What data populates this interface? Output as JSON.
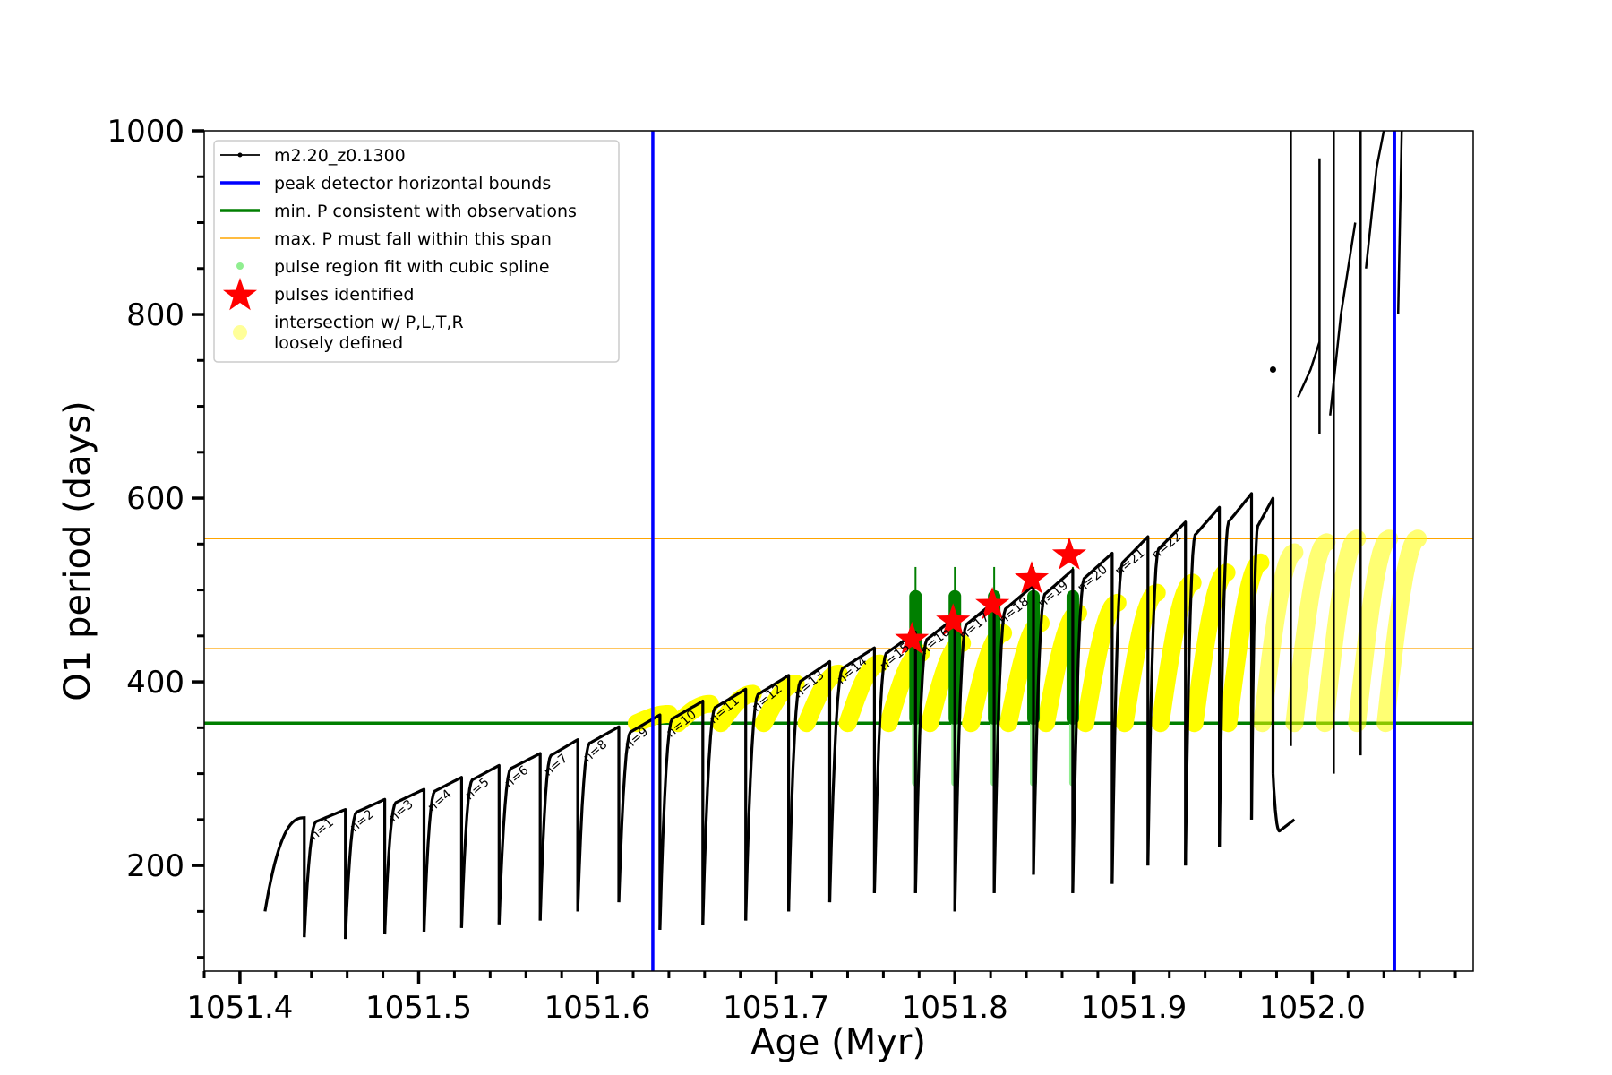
{
  "chart_data": {
    "type": "scatter",
    "xlabel": "Age (Myr)",
    "ylabel": "O1 period (days)",
    "xlim": [
      1051.38,
      2052.09
    ],
    "ylim": [
      85,
      1000
    ],
    "x_ticks": [
      1051.4,
      1051.5,
      1051.6,
      1051.7,
      1051.8,
      1051.9,
      1052.0
    ],
    "x_tick_labels": [
      "1051.4",
      "1051.5",
      "1051.6",
      "1051.7",
      "1051.8",
      "1051.9",
      "1052.0"
    ],
    "y_ticks": [
      200,
      400,
      600,
      800,
      1000
    ],
    "y_tick_labels": [
      "200",
      "400",
      "600",
      "800",
      "1000"
    ],
    "legend_position": "upper-left",
    "legend": [
      {
        "label": "m2.20_z0.1300",
        "style": "line-dot",
        "color": "#000000"
      },
      {
        "label": "peak detector horizontal bounds",
        "style": "line",
        "color": "#0000ff"
      },
      {
        "label": "min. P consistent with observations",
        "style": "line",
        "color": "#007f00"
      },
      {
        "label": "max. P must fall within this span",
        "style": "thin-line",
        "color": "#ffa500"
      },
      {
        "label": "pulse region fit with cubic spline",
        "style": "dot",
        "color": "#90ee90"
      },
      {
        "label": "pulses identified",
        "style": "star",
        "color": "#ff0000"
      },
      {
        "label": "intersection w/ P,L,T,R",
        "label2": "loosely defined",
        "style": "big-dot",
        "color": "#ffff99"
      }
    ],
    "vertical_bounds": [
      1051.631,
      1052.046
    ],
    "min_period": 355,
    "max_period_span": [
      436,
      556
    ],
    "colors": {
      "track": "#000000",
      "bounds": "#0000ff",
      "min_p": "#007f00",
      "max_p": "#ffa500",
      "spline": "#90ee90",
      "star": "#ff0000",
      "intersection": "#ffff00"
    },
    "pulses": [
      {
        "label": "n=1",
        "start": 1051.436,
        "start_p": 122,
        "peak": 262
      },
      {
        "label": "n=2",
        "start": 1051.459,
        "start_p": 120,
        "peak": 271
      },
      {
        "label": "n=3",
        "start": 1051.481,
        "start_p": 125,
        "peak": 282
      },
      {
        "label": "n=4",
        "start": 1051.503,
        "start_p": 128,
        "peak": 293
      },
      {
        "label": "n=5",
        "start": 1051.524,
        "start_p": 132,
        "peak": 306
      },
      {
        "label": "n=6",
        "start": 1051.545,
        "start_p": 136,
        "peak": 319
      },
      {
        "label": "n=7",
        "start": 1051.568,
        "start_p": 140,
        "peak": 332
      },
      {
        "label": "n=8",
        "start": 1051.589,
        "start_p": 150,
        "peak": 347
      },
      {
        "label": "n=9",
        "start": 1051.612,
        "start_p": 160,
        "peak": 361
      },
      {
        "label": "n=10",
        "start": 1051.635,
        "start_p": 130,
        "peak": 374
      },
      {
        "label": "n=11",
        "start": 1051.659,
        "start_p": 135,
        "peak": 389
      },
      {
        "label": "n=12",
        "start": 1051.683,
        "start_p": 140,
        "peak": 402
      },
      {
        "label": "n=13",
        "start": 1051.707,
        "start_p": 150,
        "peak": 417
      },
      {
        "label": "n=14",
        "start": 1051.73,
        "start_p": 160,
        "peak": 432
      },
      {
        "label": "n=15",
        "start": 1051.755,
        "start_p": 170,
        "peak": 447
      },
      {
        "label": "n=16",
        "start": 1051.778,
        "start_p": 170,
        "peak": 464
      },
      {
        "label": "n=17",
        "start": 1051.8,
        "start_p": 150,
        "peak": 480
      },
      {
        "label": "n=18",
        "start": 1051.822,
        "start_p": 170,
        "peak": 497
      },
      {
        "label": "n=19",
        "start": 1051.844,
        "start_p": 190,
        "peak": 515
      },
      {
        "label": "n=20",
        "start": 1051.866,
        "start_p": 170,
        "peak": 532
      },
      {
        "label": "n=21",
        "start": 1051.888,
        "start_p": 180,
        "peak": 550
      },
      {
        "label": "n=22",
        "start": 1051.908,
        "start_p": 200,
        "peak": 568
      },
      {
        "label": "",
        "start": 1051.929,
        "start_p": 200,
        "peak": 584
      },
      {
        "label": "",
        "start": 1051.948,
        "start_p": 220,
        "peak": 600
      },
      {
        "label": "",
        "start": 1051.966,
        "start_p": 250,
        "peak": 615
      },
      {
        "label": "",
        "start": 1051.978,
        "start_p": 300,
        "peak": 610
      }
    ],
    "spline_pulses": [
      1051.778,
      1051.8,
      1051.822,
      1051.844,
      1051.866
    ],
    "stars": [
      {
        "x": 1051.776,
        "y": 446
      },
      {
        "x": 1051.799,
        "y": 466
      },
      {
        "x": 1051.821,
        "y": 484
      },
      {
        "x": 1051.843,
        "y": 512
      },
      {
        "x": 1051.864,
        "y": 538
      }
    ],
    "intersection_pulses": [
      1051.622,
      1051.645,
      1051.669,
      1051.693,
      1051.717,
      1051.74,
      1051.763,
      1051.786,
      1051.809,
      1051.83,
      1051.851,
      1051.873,
      1051.895,
      1051.915,
      1051.934,
      1051.953,
      1051.972,
      1051.99,
      1052.007,
      1052.025,
      1052.041
    ]
  }
}
